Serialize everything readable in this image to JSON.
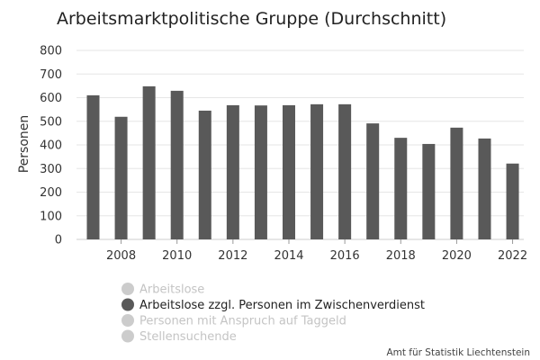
{
  "chart_data": {
    "type": "bar",
    "title": "Arbeitsmarktpolitische Gruppe (Durchschnitt)",
    "ylabel": "Personen",
    "xlabel": "",
    "ylim": [
      0,
      800
    ],
    "y_ticks": [
      0,
      100,
      200,
      300,
      400,
      500,
      600,
      700,
      800
    ],
    "x_tick_labels": [
      "2008",
      "2010",
      "2012",
      "2014",
      "2016",
      "2018",
      "2020",
      "2022"
    ],
    "categories": [
      "2007",
      "2008",
      "2009",
      "2010",
      "2011",
      "2012",
      "2013",
      "2014",
      "2015",
      "2016",
      "2017",
      "2018",
      "2019",
      "2020",
      "2021",
      "2022"
    ],
    "series": [
      {
        "name": "Arbeitslose zzgl. Personen im Zwischenverdienst",
        "color": "#595959",
        "values": [
          610,
          519,
          648,
          629,
          545,
          568,
          567,
          568,
          572,
          572,
          491,
          430,
          404,
          473,
          427,
          321
        ]
      }
    ],
    "grid": true,
    "legend": {
      "placement": "bottom",
      "items": [
        {
          "label": "Arbeitslose",
          "active": false
        },
        {
          "label": "Arbeitslose zzgl. Personen im Zwischenverdienst",
          "active": true
        },
        {
          "label": "Personen mit Anspruch auf Taggeld",
          "active": false
        },
        {
          "label": "Stellensuchende",
          "active": false
        }
      ]
    },
    "source": "Amt für Statistik Liechtenstein",
    "colors": {
      "bar": "#595959",
      "legend_active": "#595959",
      "legend_inactive": "#cccccc",
      "grid": "#e6e6e6"
    }
  }
}
